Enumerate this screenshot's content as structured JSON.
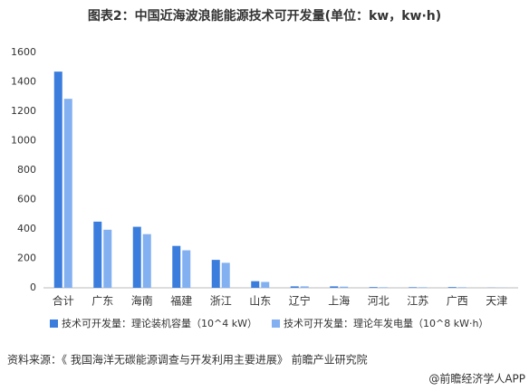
{
  "chart_data": {
    "type": "bar",
    "title": "图表2：中国近海波浪能能源技术可开发量(单位：kw，kw·h)",
    "categories": [
      "合计",
      "广东",
      "海南",
      "福建",
      "浙江",
      "山东",
      "辽宁",
      "上海",
      "河北",
      "江苏",
      "广西",
      "天津"
    ],
    "series": [
      {
        "name": "技术可开发量：理论装机容量（10^4 kW）",
        "color": "#3b7ddd",
        "values": [
          1470,
          450,
          415,
          285,
          190,
          45,
          10,
          10,
          5,
          4,
          5,
          1
        ]
      },
      {
        "name": "技术可开发量：理论年发电量（10^8 kW·h）",
        "color": "#82b0f0",
        "values": [
          1285,
          395,
          365,
          255,
          170,
          40,
          10,
          8,
          4,
          4,
          4,
          1
        ]
      }
    ],
    "ylim": [
      0,
      1600
    ],
    "yticks": [
      0,
      200,
      400,
      600,
      800,
      1000,
      1200,
      1400,
      1600
    ],
    "grid": false,
    "legend": "bottom",
    "source": "资料来源：《 我国海洋无碳能源调查与开发利用主要进展》 前瞻产业研究院",
    "credit": "@前瞻经济学人APP"
  }
}
